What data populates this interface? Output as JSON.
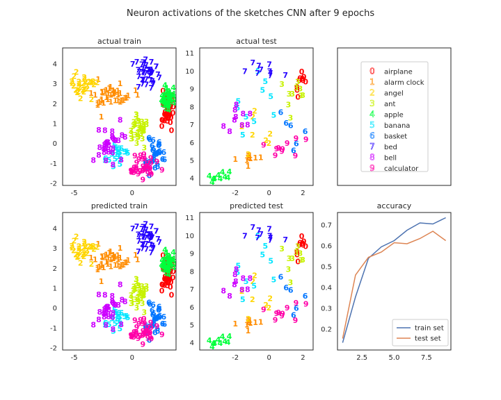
{
  "figure": {
    "title": "Neuron activations of the sketches CNN after 9 epochs"
  },
  "palette": [
    "#ff0000",
    "#ff8c00",
    "#ffd500",
    "#c7f200",
    "#00ff3b",
    "#00e5ff",
    "#0075ff",
    "#2400ff",
    "#cc00ff",
    "#ff00a8"
  ],
  "class_names": [
    "airplane",
    "alarm clock",
    "angel",
    "ant",
    "apple",
    "banana",
    "basket",
    "bed",
    "bell",
    "calculator"
  ],
  "chart_data": [
    {
      "id": "actual-train",
      "type": "scatter",
      "title": "actual train",
      "xlim": [
        -6,
        3.8
      ],
      "ylim": [
        -2.1,
        4.8
      ],
      "xticks": [
        -5,
        0
      ],
      "yticks": [
        -2,
        -1,
        0,
        1,
        2,
        3,
        4
      ],
      "clusters": [
        {
          "label": "0",
          "cx": 3.1,
          "cy": 1.8,
          "sx": 0.25,
          "sy": 0.45,
          "n": 50
        },
        {
          "label": "1",
          "cx": -1.8,
          "cy": 2.4,
          "sx": 1.0,
          "sy": 0.3,
          "n": 40
        },
        {
          "label": "2",
          "cx": -4.2,
          "cy": 2.9,
          "sx": 0.6,
          "sy": 0.3,
          "n": 30
        },
        {
          "label": "3",
          "cx": 0.6,
          "cy": 0.8,
          "sx": 0.4,
          "sy": 0.35,
          "n": 35
        },
        {
          "label": "4",
          "cx": 3.1,
          "cy": 2.2,
          "sx": 0.3,
          "sy": 0.3,
          "n": 40
        },
        {
          "label": "5",
          "cx": -1.5,
          "cy": -0.5,
          "sx": 0.6,
          "sy": 0.3,
          "n": 20
        },
        {
          "label": "6",
          "cx": 2.2,
          "cy": -0.5,
          "sx": 0.5,
          "sy": 0.5,
          "n": 30
        },
        {
          "label": "7",
          "cx": 1.3,
          "cy": 3.5,
          "sx": 0.6,
          "sy": 0.45,
          "n": 40
        },
        {
          "label": "8",
          "cx": -2.0,
          "cy": 0.0,
          "sx": 0.6,
          "sy": 0.5,
          "n": 30
        },
        {
          "label": "9",
          "cx": 1.0,
          "cy": -1.2,
          "sx": 0.6,
          "sy": 0.3,
          "n": 40
        }
      ]
    },
    {
      "id": "actual-test",
      "type": "scatter",
      "title": "actual test",
      "xlim": [
        -4.1,
        2.6
      ],
      "ylim": [
        3.6,
        11.3
      ],
      "xticks": [
        -2,
        0,
        2
      ],
      "yticks": [
        4,
        5,
        6,
        7,
        8,
        9,
        10,
        11
      ],
      "clusters": [
        {
          "label": "0",
          "cx": 1.9,
          "cy": 9.4,
          "sx": 0.2,
          "sy": 0.4,
          "n": 10
        },
        {
          "label": "1",
          "cx": -1.5,
          "cy": 5.1,
          "sx": 0.6,
          "sy": 0.2,
          "n": 10
        },
        {
          "label": "2",
          "cx": -0.8,
          "cy": 6.8,
          "sx": 0.6,
          "sy": 0.6,
          "n": 8
        },
        {
          "label": "3",
          "cx": 1.2,
          "cy": 8.9,
          "sx": 0.5,
          "sy": 0.6,
          "n": 10
        },
        {
          "label": "4",
          "cx": -2.9,
          "cy": 4.2,
          "sx": 0.3,
          "sy": 0.15,
          "n": 10
        },
        {
          "label": "5",
          "cx": -0.6,
          "cy": 8.0,
          "sx": 0.8,
          "sy": 0.9,
          "n": 10
        },
        {
          "label": "6",
          "cx": 1.2,
          "cy": 6.6,
          "sx": 0.4,
          "sy": 0.6,
          "n": 6
        },
        {
          "label": "7",
          "cx": -0.3,
          "cy": 10.1,
          "sx": 0.6,
          "sy": 0.3,
          "n": 10
        },
        {
          "label": "8",
          "cx": -1.8,
          "cy": 7.2,
          "sx": 0.5,
          "sy": 0.5,
          "n": 10
        },
        {
          "label": "9",
          "cx": 0.8,
          "cy": 5.9,
          "sx": 0.6,
          "sy": 0.4,
          "n": 10
        }
      ]
    },
    {
      "id": "predicted-train",
      "type": "scatter",
      "title": "predicted train",
      "xlim": [
        -6,
        3.8
      ],
      "ylim": [
        -2.1,
        4.8
      ],
      "xticks": [
        -5,
        0
      ],
      "yticks": [
        -2,
        -1,
        0,
        1,
        2,
        3,
        4
      ],
      "clusters": [
        {
          "label": "0",
          "cx": 3.1,
          "cy": 1.8,
          "sx": 0.25,
          "sy": 0.45,
          "n": 50
        },
        {
          "label": "1",
          "cx": -1.8,
          "cy": 2.4,
          "sx": 1.0,
          "sy": 0.3,
          "n": 40
        },
        {
          "label": "2",
          "cx": -4.2,
          "cy": 2.9,
          "sx": 0.6,
          "sy": 0.3,
          "n": 30
        },
        {
          "label": "3",
          "cx": 0.6,
          "cy": 0.8,
          "sx": 0.4,
          "sy": 0.35,
          "n": 35
        },
        {
          "label": "4",
          "cx": 3.1,
          "cy": 2.2,
          "sx": 0.3,
          "sy": 0.3,
          "n": 40
        },
        {
          "label": "5",
          "cx": -1.5,
          "cy": -0.5,
          "sx": 0.6,
          "sy": 0.3,
          "n": 20
        },
        {
          "label": "6",
          "cx": 2.2,
          "cy": -0.5,
          "sx": 0.5,
          "sy": 0.5,
          "n": 30
        },
        {
          "label": "7",
          "cx": 1.3,
          "cy": 3.5,
          "sx": 0.6,
          "sy": 0.45,
          "n": 40
        },
        {
          "label": "8",
          "cx": -2.0,
          "cy": 0.0,
          "sx": 0.6,
          "sy": 0.5,
          "n": 30
        },
        {
          "label": "9",
          "cx": 1.0,
          "cy": -1.2,
          "sx": 0.6,
          "sy": 0.3,
          "n": 40
        }
      ]
    },
    {
      "id": "predicted-test",
      "type": "scatter",
      "title": "predicted test",
      "xlim": [
        -4.1,
        2.6
      ],
      "ylim": [
        3.6,
        11.3
      ],
      "xticks": [
        -2,
        0,
        2
      ],
      "yticks": [
        4,
        5,
        6,
        7,
        8,
        9,
        10,
        11
      ],
      "clusters": [
        {
          "label": "0",
          "cx": 1.9,
          "cy": 9.4,
          "sx": 0.2,
          "sy": 0.4,
          "n": 10
        },
        {
          "label": "1",
          "cx": -1.5,
          "cy": 5.1,
          "sx": 0.6,
          "sy": 0.2,
          "n": 10
        },
        {
          "label": "2",
          "cx": -0.8,
          "cy": 6.8,
          "sx": 0.6,
          "sy": 0.6,
          "n": 8
        },
        {
          "label": "3",
          "cx": 1.2,
          "cy": 8.9,
          "sx": 0.5,
          "sy": 0.6,
          "n": 10
        },
        {
          "label": "4",
          "cx": -2.9,
          "cy": 4.2,
          "sx": 0.3,
          "sy": 0.15,
          "n": 10
        },
        {
          "label": "5",
          "cx": -0.6,
          "cy": 8.0,
          "sx": 0.8,
          "sy": 0.9,
          "n": 10
        },
        {
          "label": "6",
          "cx": 1.2,
          "cy": 6.6,
          "sx": 0.4,
          "sy": 0.6,
          "n": 6
        },
        {
          "label": "7",
          "cx": -0.3,
          "cy": 10.1,
          "sx": 0.6,
          "sy": 0.3,
          "n": 10
        },
        {
          "label": "8",
          "cx": -1.8,
          "cy": 7.2,
          "sx": 0.5,
          "sy": 0.5,
          "n": 10
        },
        {
          "label": "9",
          "cx": 0.8,
          "cy": 5.9,
          "sx": 0.6,
          "sy": 0.4,
          "n": 10
        }
      ]
    },
    {
      "id": "legend",
      "type": "legend",
      "entries": [
        "airplane",
        "alarm clock",
        "angel",
        "ant",
        "apple",
        "banana",
        "basket",
        "bed",
        "bell",
        "calculator"
      ]
    },
    {
      "id": "accuracy",
      "type": "line",
      "title": "accuracy",
      "xlim": [
        0.6,
        9.4
      ],
      "ylim": [
        0.1,
        0.76
      ],
      "xticks": [
        2.5,
        5.0,
        7.5
      ],
      "yticks": [
        0.2,
        0.3,
        0.4,
        0.5,
        0.6,
        0.7
      ],
      "x": [
        1,
        2,
        3,
        4,
        5,
        6,
        7,
        8,
        9
      ],
      "series": [
        {
          "name": "train set",
          "color": "#4c72b0",
          "values": [
            0.135,
            0.355,
            0.54,
            0.595,
            0.625,
            0.675,
            0.71,
            0.705,
            0.735
          ]
        },
        {
          "name": "test set",
          "color": "#dd8452",
          "values": [
            0.155,
            0.46,
            0.545,
            0.57,
            0.615,
            0.61,
            0.635,
            0.67,
            0.625
          ]
        }
      ],
      "legend": "lower right"
    }
  ]
}
